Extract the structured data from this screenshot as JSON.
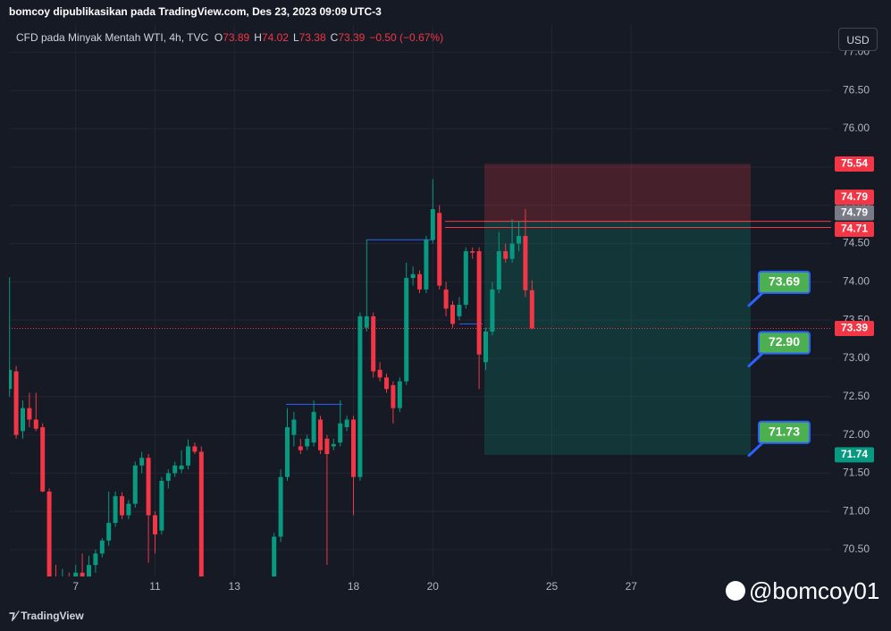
{
  "header": "bomcoy dipublikasikan pada TradingView.com, Des 23, 2023 09:09 UTC-3",
  "currency_button": "USD",
  "footer_logo": "TradingView",
  "watermark": "@bomcoy01",
  "chart_data": {
    "type": "candlestick",
    "title": "CFD pada Minyak Mentah WTI, 4h, TVC",
    "ohlc_letters": [
      "O",
      "H",
      "L",
      "C"
    ],
    "change": "−0.50 (−0.67%)",
    "up_color": "#089981",
    "down_color": "#f23645",
    "categories": [
      null,
      null,
      null,
      null,
      null,
      null,
      null,
      null,
      null,
      null,
      "7",
      null,
      null,
      null,
      null,
      null,
      null,
      null,
      null,
      null,
      null,
      null,
      "11",
      null,
      null,
      null,
      null,
      null,
      null,
      null,
      null,
      null,
      null,
      null,
      "13",
      null,
      null,
      null,
      null,
      null,
      null,
      null,
      null,
      null,
      null,
      null,
      null,
      null,
      null,
      null,
      null,
      null,
      "18",
      null,
      null,
      null,
      null,
      null,
      null,
      null,
      null,
      null,
      null,
      null,
      "20",
      null,
      null,
      null,
      null,
      null,
      null,
      null,
      null,
      null,
      null,
      null,
      null,
      null,
      null,
      null,
      null,
      null,
      "25",
      null,
      null,
      null,
      null,
      null,
      null,
      null,
      null,
      null,
      null,
      null,
      "27"
    ],
    "open": [
      72.6,
      72.83,
      72.05,
      72.35,
      72.2,
      72.1,
      71.26,
      70.1,
      70.0,
      70.1,
      69.95,
      70.2,
      70.1,
      70.3,
      70.45,
      70.62,
      70.85,
      71.2,
      70.95,
      71.1,
      71.6,
      71.7,
      70.95,
      70.75,
      71.4,
      71.5,
      71.55,
      71.6,
      71.85,
      71.78,
      70.05,
      69.8,
      69.9,
      69.75,
      69.6,
      69.7,
      69.85,
      69.8,
      69.9,
      70.0,
      70.05,
      70.67,
      71.45,
      72.0,
      71.85,
      71.85,
      71.9,
      72.2,
      71.95,
      71.85,
      71.9,
      72.1,
      72.2,
      71.45,
      73.4,
      73.55,
      72.85,
      72.75,
      72.65,
      72.35,
      72.7,
      74.05,
      74.1,
      73.9,
      74.55,
      74.9,
      73.9,
      73.7,
      73.55,
      73.7,
      74.4,
      74.4,
      72.95,
      73.35,
      73.9,
      74.4,
      74.3,
      74.5,
      74.6,
      73.89,
      null,
      null,
      null,
      null,
      null,
      null,
      null,
      null,
      null,
      null,
      null,
      null,
      null,
      null,
      null
    ],
    "high": [
      74.06,
      72.9,
      72.45,
      72.55,
      72.55,
      72.15,
      71.3,
      70.3,
      70.25,
      70.2,
      70.3,
      70.45,
      70.42,
      70.5,
      70.65,
      71.26,
      71.26,
      71.25,
      71.15,
      71.65,
      71.78,
      71.75,
      71.0,
      71.45,
      71.55,
      71.65,
      71.8,
      71.94,
      71.9,
      71.85,
      70.1,
      70.0,
      70.05,
      69.9,
      69.8,
      69.95,
      70.05,
      70.0,
      70.1,
      70.1,
      70.72,
      71.55,
      72.35,
      72.3,
      71.95,
      72.0,
      72.45,
      72.25,
      72.0,
      71.95,
      72.45,
      72.25,
      72.25,
      73.6,
      74.55,
      73.6,
      72.95,
      72.8,
      72.7,
      72.75,
      74.25,
      74.2,
      74.15,
      74.6,
      75.34,
      75.0,
      74.0,
      73.75,
      73.8,
      74.45,
      74.45,
      74.45,
      73.4,
      74.0,
      74.65,
      74.5,
      74.82,
      74.8,
      74.95,
      74.02,
      null,
      null,
      null,
      null,
      null,
      null,
      null,
      null,
      null,
      null,
      null,
      null,
      null,
      null,
      null
    ],
    "low": [
      72.5,
      71.95,
      71.95,
      72.1,
      72.05,
      71.25,
      70.05,
      69.9,
      69.85,
      69.9,
      69.9,
      70.0,
      70.0,
      70.2,
      70.4,
      70.55,
      70.8,
      70.9,
      70.9,
      71.05,
      71.5,
      70.33,
      70.45,
      70.7,
      71.3,
      71.45,
      71.5,
      71.55,
      71.75,
      70.0,
      69.7,
      69.6,
      69.7,
      69.5,
      69.4,
      69.6,
      69.7,
      69.6,
      69.8,
      69.85,
      70.0,
      70.6,
      71.4,
      71.85,
      71.75,
      71.8,
      71.85,
      71.75,
      70.3,
      71.8,
      71.85,
      72.05,
      70.95,
      71.4,
      73.35,
      72.75,
      72.7,
      72.55,
      72.15,
      72.3,
      72.65,
      73.95,
      73.85,
      73.85,
      74.5,
      73.9,
      73.55,
      73.4,
      73.5,
      73.65,
      74.3,
      72.6,
      72.85,
      73.3,
      73.85,
      74.25,
      74.25,
      74.4,
      73.8,
      73.38,
      null,
      null,
      null,
      null,
      null,
      null,
      null,
      null,
      null,
      null,
      null,
      null,
      null,
      null,
      null
    ],
    "close": [
      72.85,
      72.0,
      72.35,
      72.2,
      72.08,
      71.26,
      70.1,
      70.0,
      70.1,
      69.95,
      70.2,
      70.1,
      70.3,
      70.45,
      70.62,
      70.85,
      71.2,
      70.95,
      71.1,
      71.6,
      71.7,
      70.95,
      70.7,
      71.4,
      71.5,
      71.6,
      71.6,
      71.85,
      71.78,
      70.05,
      69.8,
      69.9,
      69.75,
      69.6,
      69.7,
      69.85,
      69.8,
      69.9,
      70.0,
      70.05,
      70.67,
      71.45,
      72.1,
      72.2,
      71.8,
      71.95,
      72.3,
      71.8,
      71.75,
      71.88,
      72.15,
      72.2,
      71.45,
      73.55,
      73.55,
      72.83,
      72.75,
      72.6,
      72.35,
      72.7,
      74.05,
      74.1,
      73.9,
      74.55,
      74.95,
      73.95,
      73.65,
      73.45,
      73.7,
      74.4,
      74.38,
      73.05,
      73.35,
      73.9,
      74.4,
      74.3,
      74.5,
      74.6,
      73.89,
      73.39,
      null,
      null,
      null,
      null,
      null,
      null,
      null,
      null,
      null,
      null,
      null,
      null,
      null,
      null,
      null
    ],
    "ylim": [
      70.15,
      77.04
    ],
    "yticks": [
      {
        "value": 77.0,
        "label": "77.00"
      },
      {
        "value": 76.5,
        "label": "76.50"
      },
      {
        "value": 76.0,
        "label": "76.00"
      },
      {
        "value": 75.5,
        "label": "75.50"
      },
      {
        "value": 75.0,
        "label": "75.00"
      },
      {
        "value": 74.5,
        "label": "74.50"
      },
      {
        "value": 74.0,
        "label": "74.00"
      },
      {
        "value": 73.5,
        "label": "73.50"
      },
      {
        "value": 73.0,
        "label": "73.00"
      },
      {
        "value": 72.5,
        "label": "72.50"
      },
      {
        "value": 72.0,
        "label": "72.00"
      },
      {
        "value": 71.5,
        "label": "71.50"
      },
      {
        "value": 71.0,
        "label": "71.00"
      },
      {
        "value": 70.5,
        "label": "70.50"
      }
    ],
    "grid": true,
    "price_labels": [
      {
        "value": 75.54,
        "color": "#f23645"
      },
      {
        "value": 74.79,
        "color": "#f23645"
      },
      {
        "value": 74.79,
        "color": "#787b86"
      },
      {
        "value": 74.71,
        "color": "#f23645"
      },
      {
        "value": 73.39,
        "color": "#f23645"
      },
      {
        "value": 71.74,
        "color": "#089981"
      }
    ],
    "levels": [
      72.4,
      74.55,
      73.45
    ],
    "level_color": "#2962ff",
    "callouts": [
      73.69,
      {
        "value": 72.9,
        "label": "72.90"
      },
      71.73
    ],
    "callout_color": "#4caf50"
  }
}
